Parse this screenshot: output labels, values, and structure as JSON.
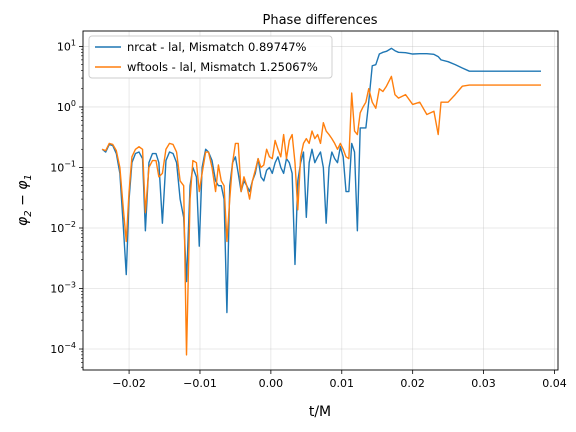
{
  "chart_data": {
    "type": "line",
    "title": "Phase differences",
    "xlabel": "t/M",
    "ylabel_base": "φ",
    "ylabel_sub2": "2",
    "ylabel_minus": " − ",
    "ylabel_sub1": "1",
    "yscale": "log",
    "xlim": [
      -0.0265,
      0.0405
    ],
    "ylim": [
      4.5e-05,
      18
    ],
    "grid": true,
    "legend_position": "top-left",
    "x_ticks": [
      {
        "value": -0.02,
        "label": "−0.02"
      },
      {
        "value": -0.01,
        "label": "−0.01"
      },
      {
        "value": 0.0,
        "label": "0.00"
      },
      {
        "value": 0.01,
        "label": "0.01"
      },
      {
        "value": 0.02,
        "label": "0.02"
      },
      {
        "value": 0.03,
        "label": "0.03"
      },
      {
        "value": 0.04,
        "label": "0.04"
      }
    ],
    "y_ticks": [
      {
        "value": 0.0001,
        "base": "10",
        "exp": "−4"
      },
      {
        "value": 0.001,
        "base": "10",
        "exp": "−3"
      },
      {
        "value": 0.01,
        "base": "10",
        "exp": "−2"
      },
      {
        "value": 0.1,
        "base": "10",
        "exp": "−1"
      },
      {
        "value": 1,
        "base": "10",
        "exp": "0"
      },
      {
        "value": 10,
        "base": "10",
        "exp": "1"
      }
    ],
    "series": [
      {
        "name": "nrcat - lal, Mismatch 0.89747%",
        "color": "#1f77b4",
        "points": [
          [
            -0.0238,
            0.2
          ],
          [
            -0.0233,
            0.18
          ],
          [
            -0.0228,
            0.24
          ],
          [
            -0.0223,
            0.23
          ],
          [
            -0.0218,
            0.17
          ],
          [
            -0.0213,
            0.08
          ],
          [
            -0.0208,
            0.01
          ],
          [
            -0.0204,
            0.0017
          ],
          [
            -0.02,
            0.03
          ],
          [
            -0.0196,
            0.12
          ],
          [
            -0.0191,
            0.17
          ],
          [
            -0.0186,
            0.18
          ],
          [
            -0.0181,
            0.14
          ],
          [
            -0.0177,
            0.009
          ],
          [
            -0.0172,
            0.12
          ],
          [
            -0.0167,
            0.17
          ],
          [
            -0.0162,
            0.17
          ],
          [
            -0.0158,
            0.12
          ],
          [
            -0.0153,
            0.012
          ],
          [
            -0.0148,
            0.13
          ],
          [
            -0.0143,
            0.18
          ],
          [
            -0.0138,
            0.17
          ],
          [
            -0.0133,
            0.12
          ],
          [
            -0.0128,
            0.03
          ],
          [
            -0.0123,
            0.015
          ],
          [
            -0.0119,
            0.0013
          ],
          [
            -0.0114,
            0.05
          ],
          [
            -0.011,
            0.1
          ],
          [
            -0.0105,
            0.07
          ],
          [
            -0.0101,
            0.005
          ],
          [
            -0.0097,
            0.1
          ],
          [
            -0.0092,
            0.2
          ],
          [
            -0.0088,
            0.18
          ],
          [
            -0.0083,
            0.13
          ],
          [
            -0.0078,
            0.06
          ],
          [
            -0.0074,
            0.05
          ],
          [
            -0.007,
            0.05
          ],
          [
            -0.0066,
            0.03
          ],
          [
            -0.0062,
            0.0004
          ],
          [
            -0.0058,
            0.05
          ],
          [
            -0.0054,
            0.12
          ],
          [
            -0.005,
            0.15
          ],
          [
            -0.0046,
            0.08
          ],
          [
            -0.0042,
            0.04
          ],
          [
            -0.0038,
            0.06
          ],
          [
            -0.0034,
            0.05
          ],
          [
            -0.003,
            0.04
          ],
          [
            -0.0026,
            0.06
          ],
          [
            -0.0022,
            0.08
          ],
          [
            -0.0018,
            0.14
          ],
          [
            -0.0014,
            0.07
          ],
          [
            -0.001,
            0.06
          ],
          [
            -0.0006,
            0.09
          ],
          [
            -0.0002,
            0.1
          ],
          [
            0.0002,
            0.08
          ],
          [
            0.0006,
            0.12
          ],
          [
            0.001,
            0.15
          ],
          [
            0.0014,
            0.1
          ],
          [
            0.0018,
            0.08
          ],
          [
            0.0022,
            0.14
          ],
          [
            0.0026,
            0.12
          ],
          [
            0.003,
            0.08
          ],
          [
            0.0034,
            0.0025
          ],
          [
            0.0038,
            0.06
          ],
          [
            0.0042,
            0.12
          ],
          [
            0.0046,
            0.18
          ],
          [
            0.005,
            0.015
          ],
          [
            0.0054,
            0.12
          ],
          [
            0.0058,
            0.2
          ],
          [
            0.0062,
            0.12
          ],
          [
            0.0066,
            0.15
          ],
          [
            0.007,
            0.18
          ],
          [
            0.0074,
            0.1
          ],
          [
            0.0078,
            0.012
          ],
          [
            0.0082,
            0.1
          ],
          [
            0.0086,
            0.18
          ],
          [
            0.009,
            0.14
          ],
          [
            0.0094,
            0.12
          ],
          [
            0.0098,
            0.22
          ],
          [
            0.0102,
            0.15
          ],
          [
            0.0106,
            0.04
          ],
          [
            0.011,
            0.04
          ],
          [
            0.0114,
            0.25
          ],
          [
            0.0118,
            0.18
          ],
          [
            0.0122,
            0.009
          ],
          [
            0.0126,
            0.45
          ],
          [
            0.013,
            0.45
          ],
          [
            0.0134,
            0.45
          ],
          [
            0.0138,
            1.2
          ],
          [
            0.0143,
            4.8
          ],
          [
            0.0148,
            5.0
          ],
          [
            0.0153,
            7.5
          ],
          [
            0.0158,
            8.0
          ],
          [
            0.0163,
            8.3
          ],
          [
            0.017,
            9.3
          ],
          [
            0.0175,
            8.5
          ],
          [
            0.018,
            8.0
          ],
          [
            0.019,
            7.9
          ],
          [
            0.02,
            7.5
          ],
          [
            0.021,
            7.6
          ],
          [
            0.022,
            7.6
          ],
          [
            0.023,
            7.4
          ],
          [
            0.0236,
            6.8
          ],
          [
            0.024,
            6.0
          ],
          [
            0.025,
            5.6
          ],
          [
            0.026,
            5.0
          ],
          [
            0.027,
            4.4
          ],
          [
            0.028,
            3.9
          ],
          [
            0.03,
            3.9
          ],
          [
            0.032,
            3.9
          ],
          [
            0.034,
            3.9
          ],
          [
            0.036,
            3.9
          ],
          [
            0.0381,
            3.9
          ]
        ]
      },
      {
        "name": "wftools - lal, Mismatch 1.25067%",
        "color": "#ff7f0e",
        "points": [
          [
            -0.0238,
            0.2
          ],
          [
            -0.0233,
            0.19
          ],
          [
            -0.0228,
            0.25
          ],
          [
            -0.0223,
            0.24
          ],
          [
            -0.0218,
            0.19
          ],
          [
            -0.0213,
            0.1
          ],
          [
            -0.0208,
            0.02
          ],
          [
            -0.0204,
            0.006
          ],
          [
            -0.02,
            0.04
          ],
          [
            -0.0196,
            0.15
          ],
          [
            -0.0191,
            0.2
          ],
          [
            -0.0186,
            0.22
          ],
          [
            -0.0181,
            0.2
          ],
          [
            -0.0177,
            0.018
          ],
          [
            -0.0172,
            0.1
          ],
          [
            -0.0167,
            0.13
          ],
          [
            -0.0162,
            0.13
          ],
          [
            -0.0158,
            0.07
          ],
          [
            -0.0153,
            0.08
          ],
          [
            -0.0148,
            0.2
          ],
          [
            -0.0143,
            0.25
          ],
          [
            -0.0138,
            0.24
          ],
          [
            -0.0133,
            0.18
          ],
          [
            -0.0128,
            0.06
          ],
          [
            -0.0123,
            0.05
          ],
          [
            -0.0119,
            8e-05
          ],
          [
            -0.0114,
            0.03
          ],
          [
            -0.011,
            0.13
          ],
          [
            -0.0105,
            0.12
          ],
          [
            -0.0101,
            0.04
          ],
          [
            -0.0097,
            0.08
          ],
          [
            -0.0092,
            0.18
          ],
          [
            -0.0088,
            0.18
          ],
          [
            -0.0083,
            0.1
          ],
          [
            -0.0078,
            0.04
          ],
          [
            -0.0074,
            0.11
          ],
          [
            -0.007,
            0.06
          ],
          [
            -0.0066,
            0.05
          ],
          [
            -0.0062,
            0.006
          ],
          [
            -0.0058,
            0.03
          ],
          [
            -0.0054,
            0.12
          ],
          [
            -0.005,
            0.25
          ],
          [
            -0.0046,
            0.25
          ],
          [
            -0.0042,
            0.04
          ],
          [
            -0.0038,
            0.07
          ],
          [
            -0.0034,
            0.05
          ],
          [
            -0.003,
            0.03
          ],
          [
            -0.0026,
            0.06
          ],
          [
            -0.0022,
            0.09
          ],
          [
            -0.0018,
            0.14
          ],
          [
            -0.0014,
            0.1
          ],
          [
            -0.001,
            0.11
          ],
          [
            -0.0006,
            0.2
          ],
          [
            -0.0002,
            0.15
          ],
          [
            0.0002,
            0.14
          ],
          [
            0.0006,
            0.28
          ],
          [
            0.001,
            0.2
          ],
          [
            0.0014,
            0.15
          ],
          [
            0.0018,
            0.35
          ],
          [
            0.0022,
            0.14
          ],
          [
            0.0026,
            0.28
          ],
          [
            0.003,
            0.35
          ],
          [
            0.0034,
            0.12
          ],
          [
            0.0038,
            0.02
          ],
          [
            0.0042,
            0.15
          ],
          [
            0.0046,
            0.25
          ],
          [
            0.005,
            0.3
          ],
          [
            0.0054,
            0.25
          ],
          [
            0.0058,
            0.4
          ],
          [
            0.0062,
            0.3
          ],
          [
            0.0066,
            0.35
          ],
          [
            0.007,
            0.25
          ],
          [
            0.0074,
            0.55
          ],
          [
            0.0078,
            0.4
          ],
          [
            0.0082,
            0.35
          ],
          [
            0.0086,
            0.3
          ],
          [
            0.009,
            0.25
          ],
          [
            0.0094,
            0.2
          ],
          [
            0.0098,
            0.25
          ],
          [
            0.0102,
            0.2
          ],
          [
            0.0106,
            0.15
          ],
          [
            0.011,
            0.14
          ],
          [
            0.0114,
            1.7
          ],
          [
            0.0118,
            0.4
          ],
          [
            0.0122,
            0.35
          ],
          [
            0.0126,
            0.8
          ],
          [
            0.013,
            1.0
          ],
          [
            0.0134,
            1.2
          ],
          [
            0.0138,
            2.0
          ],
          [
            0.0143,
            1.2
          ],
          [
            0.0148,
            0.95
          ],
          [
            0.0153,
            2.0
          ],
          [
            0.0158,
            1.8
          ],
          [
            0.0163,
            2.2
          ],
          [
            0.017,
            3.2
          ],
          [
            0.0175,
            1.6
          ],
          [
            0.018,
            1.4
          ],
          [
            0.019,
            1.6
          ],
          [
            0.02,
            1.1
          ],
          [
            0.021,
            1.2
          ],
          [
            0.022,
            0.75
          ],
          [
            0.023,
            0.85
          ],
          [
            0.0236,
            0.35
          ],
          [
            0.024,
            1.2
          ],
          [
            0.025,
            1.2
          ],
          [
            0.026,
            1.6
          ],
          [
            0.027,
            2.2
          ],
          [
            0.028,
            2.3
          ],
          [
            0.03,
            2.3
          ],
          [
            0.032,
            2.3
          ],
          [
            0.034,
            2.3
          ],
          [
            0.036,
            2.3
          ],
          [
            0.0381,
            2.3
          ]
        ]
      }
    ]
  }
}
